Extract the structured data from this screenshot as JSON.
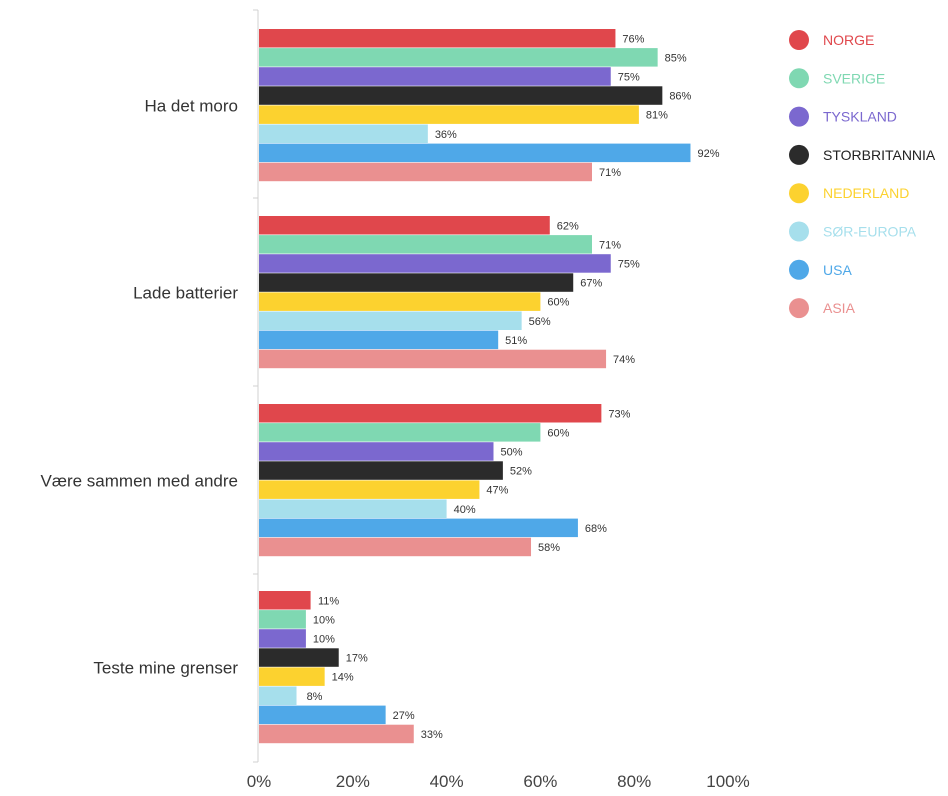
{
  "chart_data": {
    "type": "bar",
    "orientation": "horizontal",
    "categories": [
      "Ha det moro",
      "Lade batterier",
      "Være sammen med andre",
      "Teste mine grenser"
    ],
    "series": [
      {
        "name": "NORGE",
        "color": "#e0474c",
        "values": [
          76,
          62,
          73,
          11
        ]
      },
      {
        "name": "SVERIGE",
        "color": "#7fd8b2",
        "values": [
          85,
          71,
          60,
          10
        ]
      },
      {
        "name": "TYSKLAND",
        "color": "#7b68cf",
        "values": [
          75,
          75,
          50,
          10
        ]
      },
      {
        "name": "STORBRITANNIA",
        "color": "#2b2b2b",
        "values": [
          86,
          67,
          52,
          17
        ]
      },
      {
        "name": "NEDERLAND",
        "color": "#fcd22f",
        "values": [
          81,
          60,
          47,
          14
        ]
      },
      {
        "name": "SØR-EUROPA",
        "color": "#a6dfec",
        "values": [
          36,
          56,
          40,
          8
        ]
      },
      {
        "name": "USA",
        "color": "#4fa8e8",
        "values": [
          92,
          51,
          68,
          27
        ]
      },
      {
        "name": "ASIA",
        "color": "#ea9090",
        "values": [
          71,
          74,
          58,
          33
        ]
      }
    ],
    "value_suffix": "%",
    "xlim": [
      0,
      100
    ],
    "x_ticks": [
      "0%",
      "20%",
      "40%",
      "60%",
      "80%",
      "100%"
    ],
    "grid": false,
    "legend_position": "top-right"
  }
}
